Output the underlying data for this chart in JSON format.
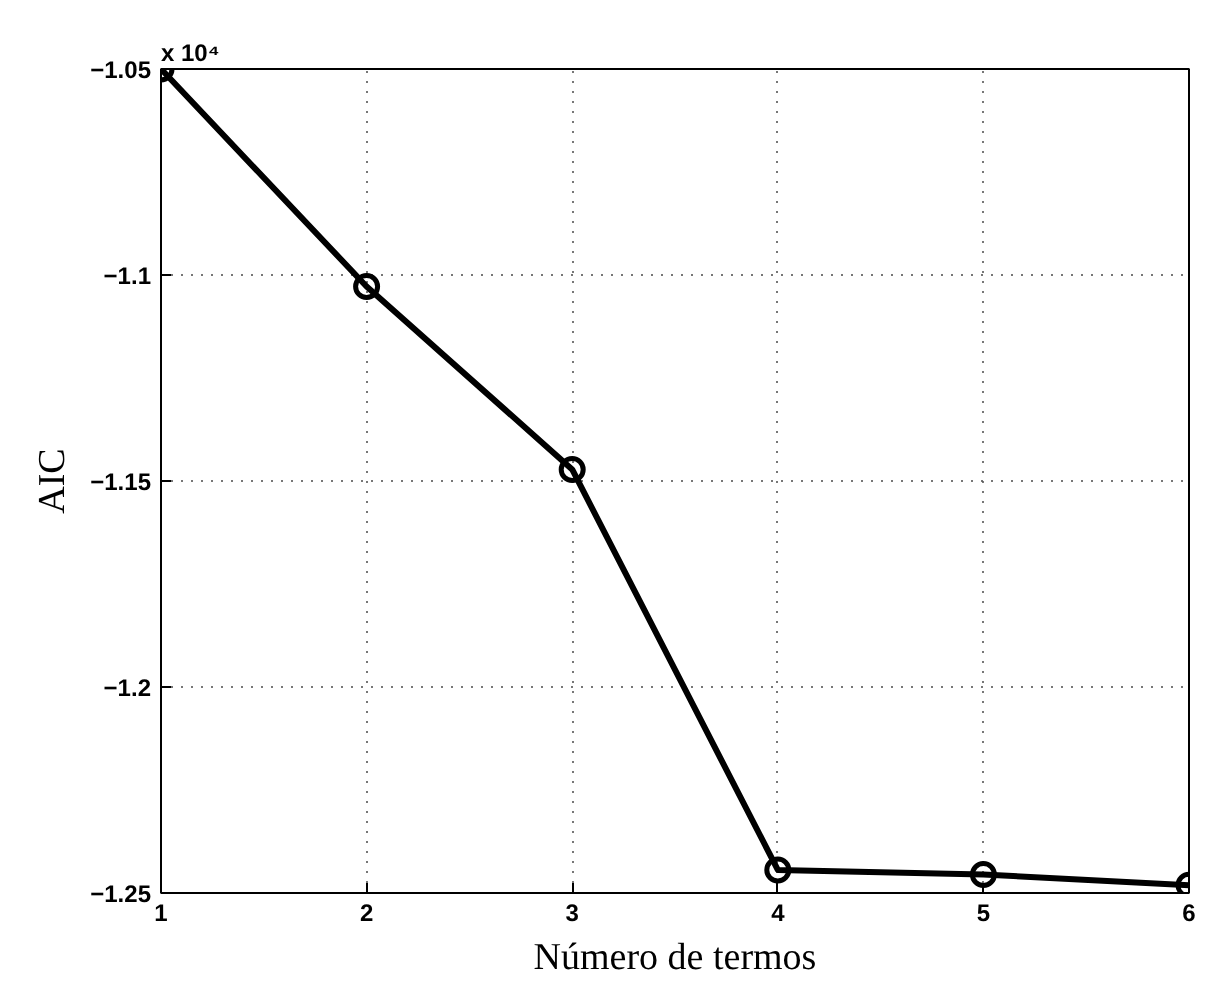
{
  "chart_data": {
    "type": "line",
    "xlabel": "Número de termos",
    "ylabel": "AIC",
    "x": [
      1,
      2,
      3,
      4,
      5,
      6
    ],
    "series": [
      {
        "color": "#000000",
        "values": [
          -1.05,
          -1.1028,
          -1.1472,
          -1.2444,
          -1.2455,
          -1.2481
        ]
      }
    ],
    "xlim": [
      1,
      6
    ],
    "xticks": [
      1,
      2,
      3,
      4,
      5,
      6
    ],
    "ylim": [
      -1.25,
      -1.05
    ],
    "yticks": [
      -1.25,
      -1.2,
      -1.15,
      -1.1,
      -1.05
    ],
    "annotations": [
      "x 10⁴"
    ],
    "grid": true,
    "marker": "circle",
    "line_style": "solid"
  }
}
